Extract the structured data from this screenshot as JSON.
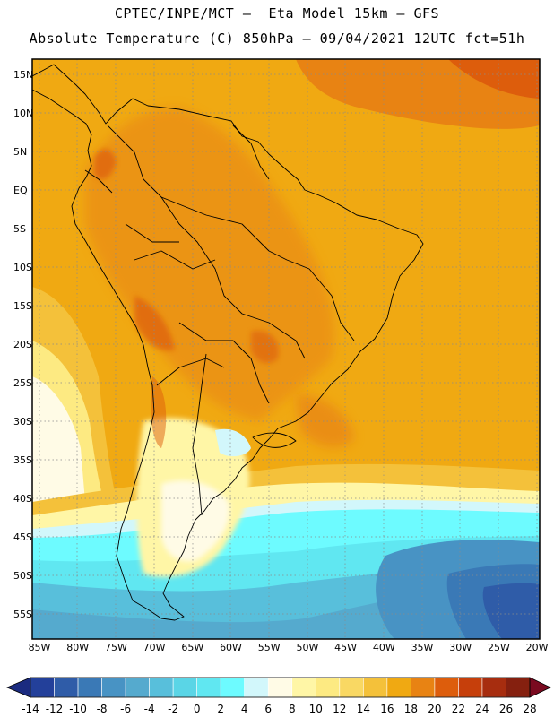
{
  "header": {
    "line1": "CPTEC/INPE/MCT –  Eta Model 15km – GFS",
    "line2": "Absolute Temperature (C) 850hPa – 09/04/2021 12UTC fct=51h"
  },
  "map": {
    "lat_labels": [
      "15N",
      "10N",
      "5N",
      "EQ",
      "5S",
      "10S",
      "15S",
      "20S",
      "25S",
      "30S",
      "35S",
      "40S",
      "45S",
      "50S",
      "55S"
    ],
    "lon_labels": [
      "85W",
      "80W",
      "75W",
      "70W",
      "65W",
      "60W",
      "55W",
      "50W",
      "45W",
      "40W",
      "35W",
      "30W",
      "25W",
      "20W"
    ],
    "lat_range": [
      17.5,
      -57.5
    ],
    "lon_range": [
      -86.0,
      -19.5
    ],
    "grid": "dotted"
  },
  "colorbar": {
    "labels": [
      "-14",
      "-12",
      "-10",
      "-8",
      "-6",
      "-4",
      "-2",
      "0",
      "2",
      "4",
      "6",
      "8",
      "10",
      "12",
      "14",
      "16",
      "18",
      "20",
      "22",
      "24",
      "26",
      "28"
    ],
    "colors": [
      "#23409a",
      "#2f5ca8",
      "#3a79b6",
      "#4893c4",
      "#55aace",
      "#58bfdb",
      "#5ad5e6",
      "#60e7f1",
      "#6dfbff",
      "#d2f7fb",
      "#fffbe6",
      "#fff6a6",
      "#fdea82",
      "#f9d863",
      "#f4c13a",
      "#f0a912",
      "#e88313",
      "#dd5d0c",
      "#c63f0b",
      "#a72d0f",
      "#85200f"
    ],
    "min_color": "#1b2b80",
    "max_color": "#7a0a20"
  }
}
